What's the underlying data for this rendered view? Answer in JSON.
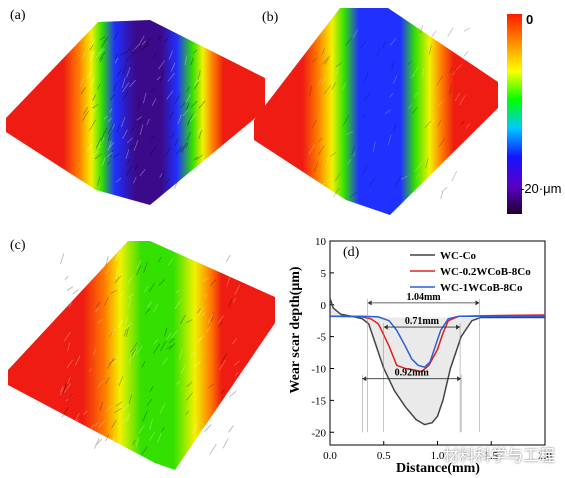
{
  "panels": {
    "a": "(a)",
    "b": "(b)",
    "c": "(c)",
    "d": "(d)"
  },
  "colorbar": {
    "top_label": "0",
    "bottom_label": "-20·μm",
    "colors": [
      "#ff1a00",
      "#ff8c00",
      "#ffff00",
      "#00ff00",
      "#00c8ff",
      "#1414ff",
      "#5a00c8",
      "#1e0032"
    ]
  },
  "surfaces": {
    "red": "#ee1c12",
    "orange": "#ff7a00",
    "yellow": "#f2f200",
    "green": "#33e000",
    "blue": "#2030ff",
    "purple": "#3a0a8a"
  },
  "watermark": "材料科学与工程",
  "chart_data": {
    "type": "line",
    "xlabel": "Distance(mm)",
    "ylabel": "Wear scar depth(μm)",
    "xlim": [
      0.0,
      2.0
    ],
    "ylim": [
      -22,
      10
    ],
    "xticks": [
      "0.0",
      "0.5",
      "1.0",
      "1.5",
      "2.0"
    ],
    "yticks": [
      "10",
      "5",
      "0",
      "-5",
      "-10",
      "-15",
      "-20"
    ],
    "series": [
      {
        "name": "WC-Co",
        "color": "#444444",
        "x": [
          0.0,
          0.03,
          0.1,
          0.2,
          0.3,
          0.36,
          0.42,
          0.5,
          0.6,
          0.7,
          0.8,
          0.88,
          0.95,
          1.0,
          1.05,
          1.12,
          1.22,
          1.32,
          1.4,
          1.5,
          1.7,
          2.0
        ],
        "y": [
          1.0,
          -0.5,
          -1.5,
          -1.8,
          -2.2,
          -3.0,
          -6.0,
          -10.0,
          -13.5,
          -16.0,
          -18.0,
          -18.8,
          -18.5,
          -17.5,
          -15.0,
          -10.0,
          -5.0,
          -2.5,
          -2.0,
          -2.0,
          -2.0,
          -2.0
        ]
      },
      {
        "name": "WC-0.2WCoB-8Co",
        "color": "#e02020",
        "x": [
          0.0,
          0.3,
          0.38,
          0.45,
          0.55,
          0.62,
          0.7,
          0.78,
          0.85,
          0.92,
          1.0,
          1.05,
          1.1,
          1.2,
          1.5,
          2.0
        ],
        "y": [
          -1.8,
          -1.9,
          -2.2,
          -3.0,
          -6.5,
          -9.5,
          -10.0,
          -10.2,
          -10.5,
          -9.5,
          -7.0,
          -4.5,
          -2.5,
          -1.8,
          -1.7,
          -1.6
        ]
      },
      {
        "name": "WC-1WCoB-8Co",
        "color": "#2a5fd6",
        "x": [
          0.0,
          0.3,
          0.45,
          0.55,
          0.62,
          0.7,
          0.76,
          0.82,
          0.88,
          0.93,
          0.98,
          1.03,
          1.1,
          1.2,
          1.5,
          2.0
        ],
        "y": [
          -1.8,
          -1.8,
          -1.9,
          -2.5,
          -4.0,
          -6.5,
          -8.5,
          -9.5,
          -9.8,
          -9.0,
          -6.5,
          -4.0,
          -2.2,
          -1.8,
          -1.8,
          -1.8
        ]
      }
    ],
    "annotations": [
      {
        "text": "1.04mm",
        "x1": 0.35,
        "x2": 1.39,
        "y": 0.3
      },
      {
        "text": "0.71mm",
        "x1": 0.5,
        "x2": 1.21,
        "y": -3.5
      },
      {
        "text": "0.92mm",
        "x1": 0.3,
        "x2": 1.22,
        "y": -11.6
      }
    ]
  }
}
